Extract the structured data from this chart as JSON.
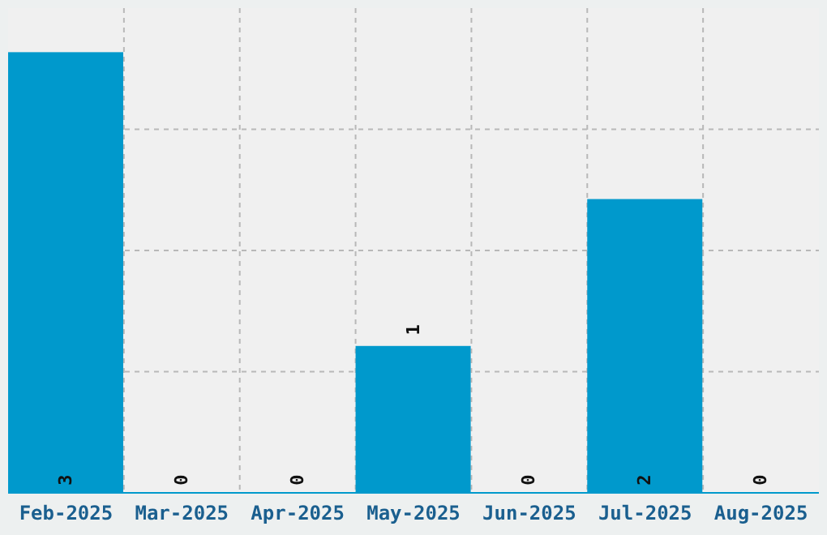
{
  "chart_data": {
    "type": "bar",
    "categories": [
      "Feb-2025",
      "Mar-2025",
      "Apr-2025",
      "May-2025",
      "Jun-2025",
      "Jul-2025",
      "Aug-2025"
    ],
    "values": [
      3,
      0,
      0,
      1,
      0,
      2,
      0
    ],
    "color": "#0099cc",
    "tick_labels": "x",
    "grid": true,
    "data_labels": true
  }
}
